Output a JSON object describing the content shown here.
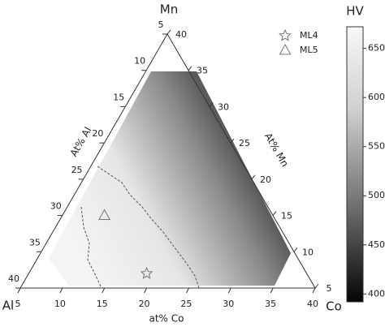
{
  "chart_data": {
    "type": "ternary",
    "axes": {
      "Al": {
        "label": "Al",
        "title": "At% Al",
        "lim": [
          5,
          40
        ],
        "ticks": [
          5,
          10,
          15,
          20,
          25,
          30,
          35,
          40
        ]
      },
      "Co": {
        "label": "Co",
        "title": "at% Co",
        "lim": [
          5,
          40
        ],
        "ticks": [
          5,
          10,
          15,
          20,
          25,
          30,
          35,
          40
        ]
      },
      "Mn": {
        "label": "Mn",
        "title": "At% Mn",
        "lim": [
          5,
          40
        ],
        "ticks": [
          5,
          10,
          15,
          20,
          25,
          30,
          35,
          40
        ]
      }
    },
    "series": [
      {
        "name": "ML4",
        "marker": "star",
        "color": "#777777",
        "Al": [
          24
        ],
        "Co": [
          19
        ],
        "Mn": [
          7
        ]
      },
      {
        "name": "ML5",
        "marker": "triangle",
        "color": "#777777",
        "Al": [
          25
        ],
        "Co": [
          10
        ],
        "Mn": [
          15
        ]
      }
    ],
    "colorbar": {
      "title": "HV",
      "lim": [
        392,
        672
      ],
      "ticks": [
        400,
        450,
        500,
        550,
        600,
        650
      ]
    }
  }
}
